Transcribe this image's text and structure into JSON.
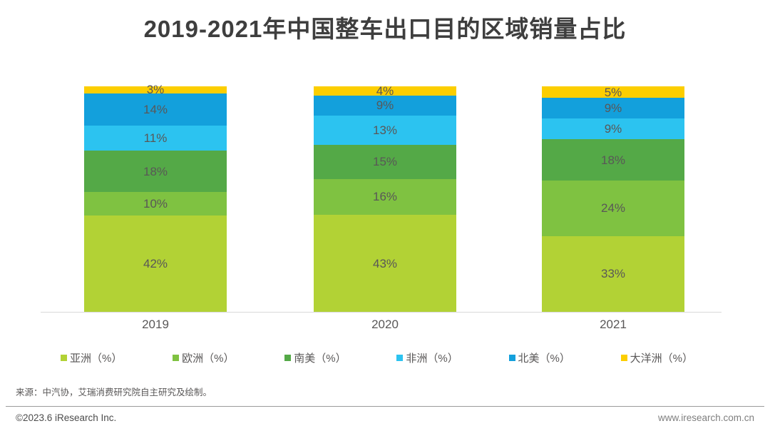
{
  "title": "2019-2021年中国整车出口目的区域销量占比",
  "chart_data": {
    "type": "bar",
    "stacked": true,
    "unit": "%",
    "title": "2019-2021年中国整车出口目的区域销量占比",
    "categories": [
      "2019",
      "2020",
      "2021"
    ],
    "series": [
      {
        "name": "亚洲（%）",
        "color": "#b2d235",
        "values": [
          42,
          43,
          33
        ]
      },
      {
        "name": "欧洲（%）",
        "color": "#7fc241",
        "values": [
          10,
          16,
          24
        ]
      },
      {
        "name": "南美（%）",
        "color": "#54a947",
        "values": [
          18,
          15,
          18
        ]
      },
      {
        "name": "非洲（%）",
        "color": "#2cc3f0",
        "values": [
          11,
          13,
          9
        ]
      },
      {
        "name": "北美（%）",
        "color": "#13a0dc",
        "values": [
          14,
          9,
          9
        ]
      },
      {
        "name": "大洋洲（%）",
        "color": "#fcce00",
        "values": [
          3,
          4,
          5
        ]
      }
    ],
    "legend_position": "bottom",
    "grid": false,
    "ylim": [
      0,
      100
    ],
    "label_color": "#595757",
    "axis_color": "#d9d9d9"
  },
  "footer": {
    "source": "来源：中汽协，艾瑞消费研究院自主研究及绘制。",
    "copyright": "©2023.6 iResearch Inc.",
    "website": "www.iresearch.com.cn"
  }
}
